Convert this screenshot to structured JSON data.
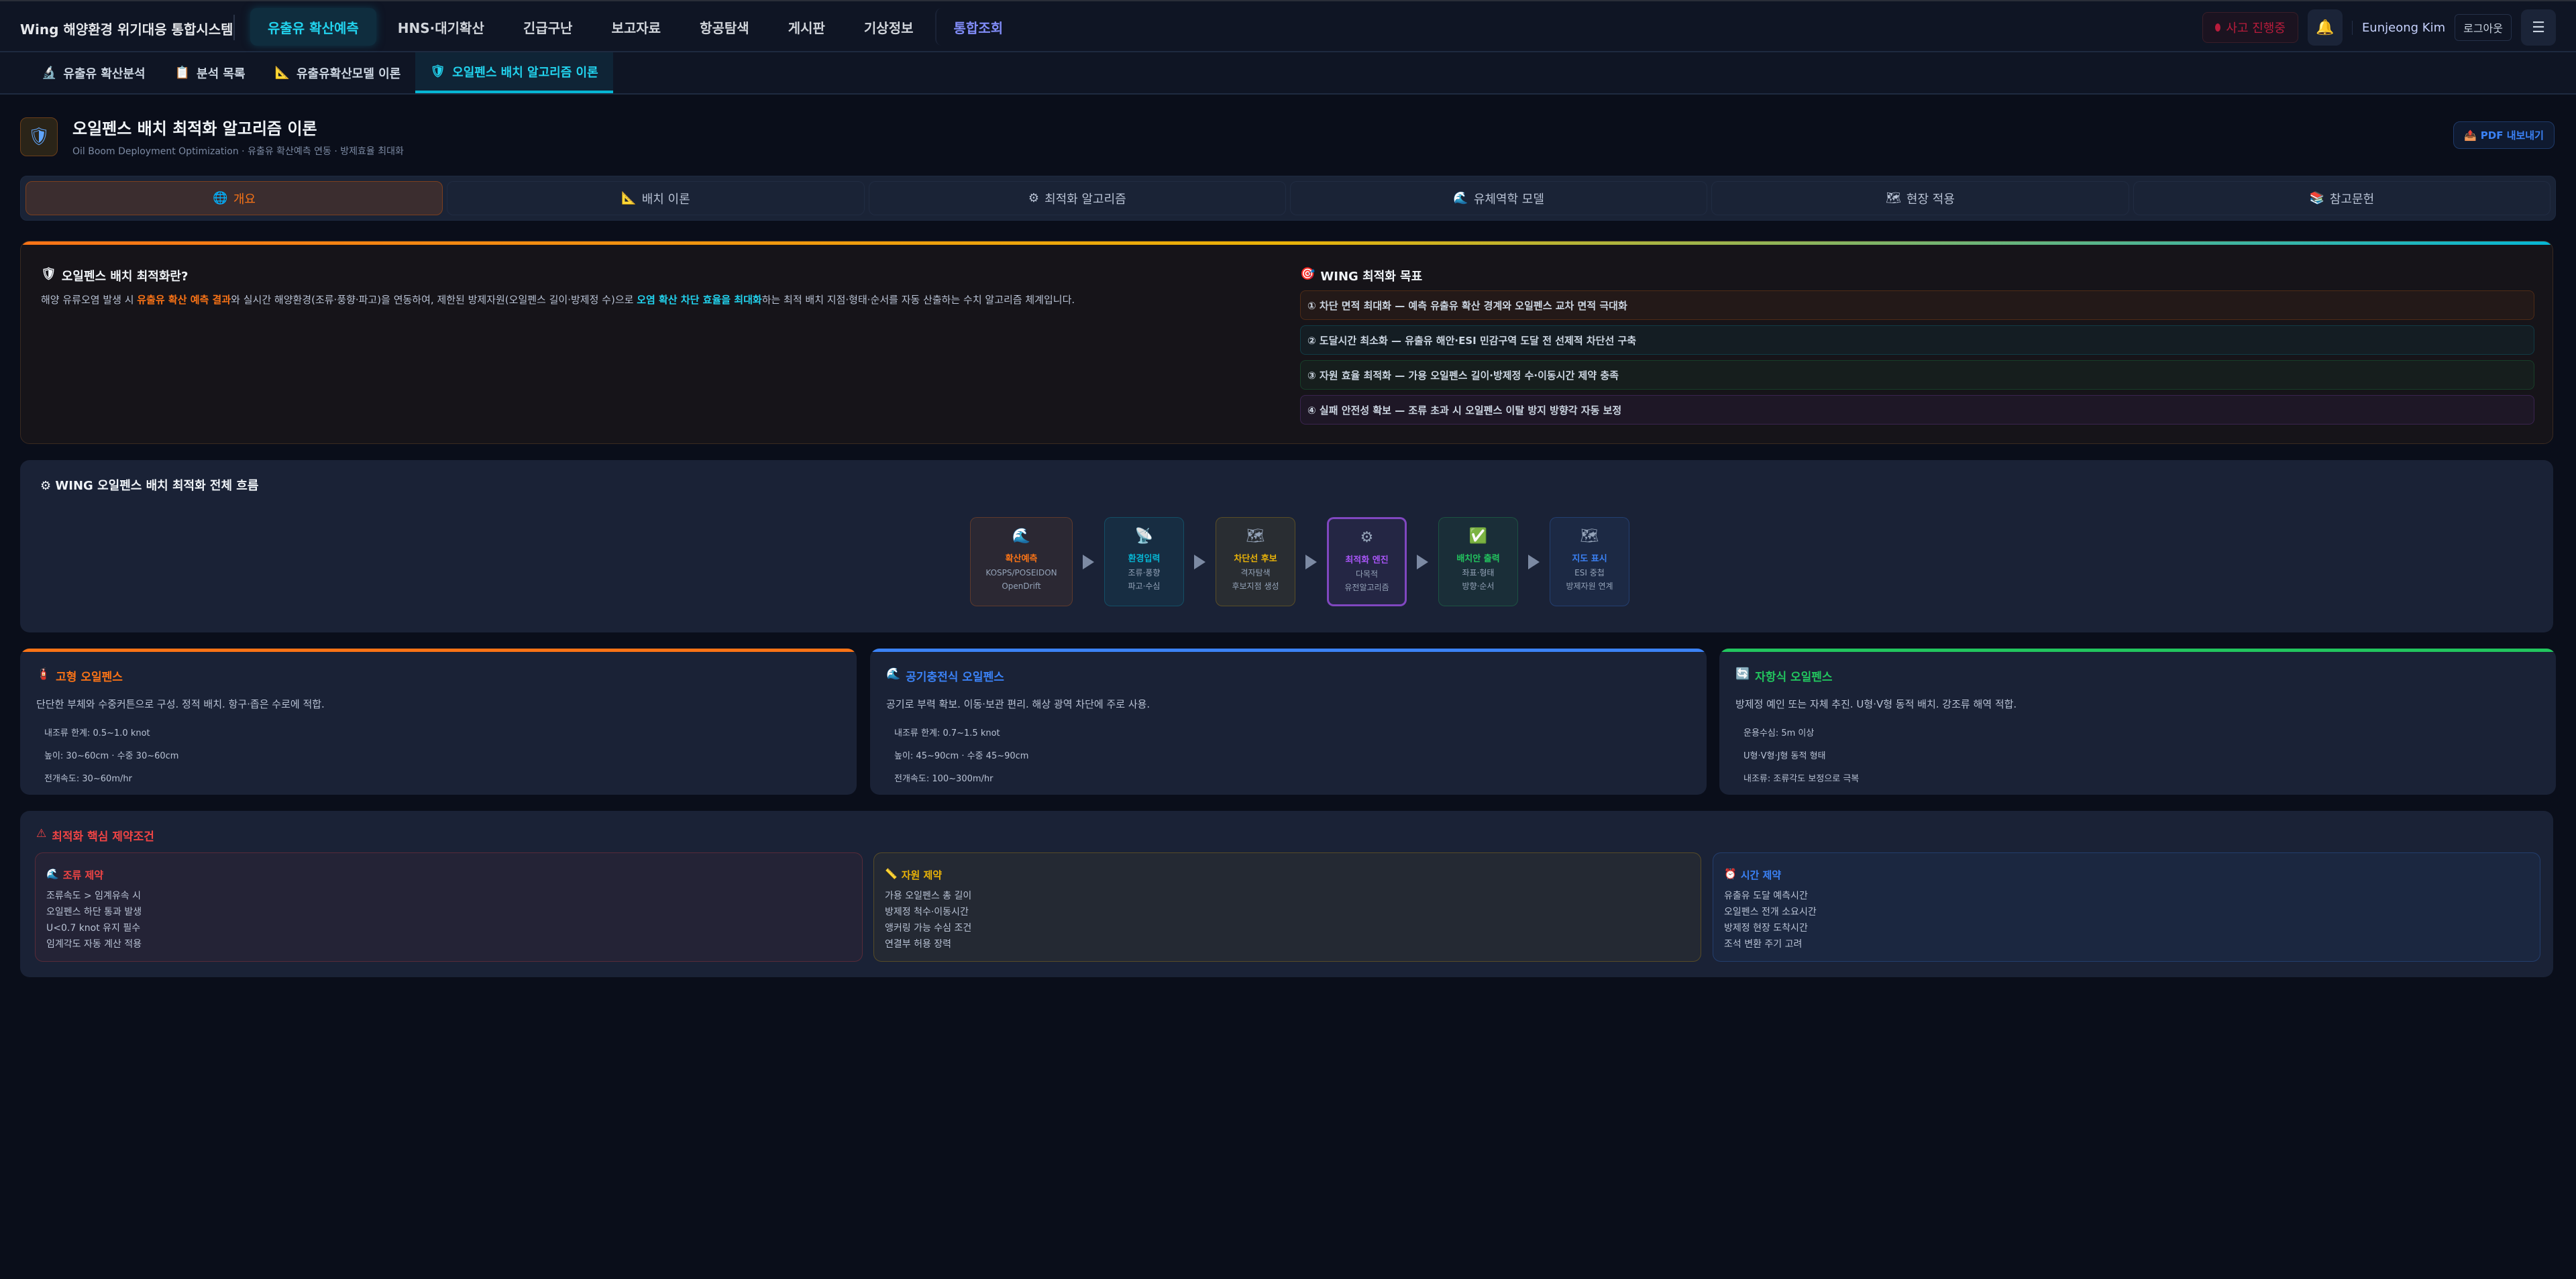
{
  "header": {
    "logo": "Wing 해양환경 위기대응 통합시스템",
    "nav": [
      {
        "label": "유출유 확산예측",
        "active": true
      },
      {
        "label": "HNS·대기확산"
      },
      {
        "label": "긴급구난"
      },
      {
        "label": "보고자료"
      },
      {
        "label": "항공탐색"
      },
      {
        "label": "게시판"
      },
      {
        "label": "기상정보"
      },
      {
        "label": "통합조회",
        "special": true
      }
    ],
    "incident": "사고 진행중",
    "user": "Eunjeong Kim",
    "logout": "로그아웃",
    "bell_icon": "bell-icon",
    "menu_icon": "hamburger-icon"
  },
  "subnav": [
    {
      "icon": "🔬",
      "label": "유출유 확산분석"
    },
    {
      "icon": "📋",
      "label": "분석 목록"
    },
    {
      "icon": "📐",
      "label": "유출유확산모델 이론"
    },
    {
      "icon": "🛡",
      "label": "오일펜스 배치 알고리즘 이론",
      "active": true
    }
  ],
  "page": {
    "title": "오일펜스 배치 최적화 알고리즘 이론",
    "subtitle": "Oil Boom Deployment Optimization · 유출유 확산예측 연동 · 방제효율 최대화",
    "pdf": "PDF 내보내기"
  },
  "tabs": [
    {
      "icon": "🌐",
      "label": "개요",
      "active": true
    },
    {
      "icon": "📐",
      "label": "배치 이론"
    },
    {
      "icon": "⚙",
      "label": "최적화 알고리즘"
    },
    {
      "icon": "🌊",
      "label": "유체역학 모델"
    },
    {
      "icon": "🗺",
      "label": "현장 적용"
    },
    {
      "icon": "📚",
      "label": "참고문헌"
    }
  ],
  "overview": {
    "heading": "오일펜스 배치 최적화란?",
    "para": [
      "해양 유류오염 발생 시 ",
      "유출유 확산 예측 결과",
      "와 실시간 해양환경(조류·풍향·파고)을 연동하여, 제한된 방제자원(오일펜스 길이·방제정 수)으로 ",
      "오염 확산 차단 효율을 최대화",
      "하는 최적 배치 지점·형태·순서를 자동 산출하는 수치 알고리즘 체계입니다."
    ],
    "goals_heading": "WING 최적화 목표",
    "goals": [
      {
        "text": "① 차단 면적 최대화 — 예측 유출유 확산 경계와 오일펜스 교차 면적 극대화",
        "color": "#f97316"
      },
      {
        "text": "② 도달시간 최소화 — 유출유 해안·ESI 민감구역 도달 전 선제적 차단선 구축",
        "color": "#06b6d4"
      },
      {
        "text": "③ 자원 효율 최적화 — 가용 오일펜스 길이·방제정 수·이동시간 제약 충족",
        "color": "#22c55e"
      },
      {
        "text": "④ 실패 안전성 확보 — 조류 초과 시 오일펜스 이탈 방지 방향각 자동 보정",
        "color": "#a855f7"
      }
    ]
  },
  "flow": {
    "heading": "WING 오일펜스 배치 최적화 전체 흐름",
    "steps": [
      {
        "icon": "🌊",
        "title": "확산예측",
        "lines": [
          "KOSPS/POSEIDON",
          "OpenDrift"
        ],
        "color": "#f97316"
      },
      {
        "icon": "📡",
        "title": "환경입력",
        "lines": [
          "조류·풍향",
          "파고·수심"
        ],
        "color": "#06b6d4"
      },
      {
        "icon": "🗺",
        "title": "차단선 후보",
        "lines": [
          "격자탐색",
          "후보지점 생성"
        ],
        "color": "#eab308"
      },
      {
        "icon": "⚙",
        "title": "최적화 엔진",
        "lines": [
          "다목적",
          "유전알고리즘"
        ],
        "color": "#a855f7"
      },
      {
        "icon": "✅",
        "title": "배치안 출력",
        "lines": [
          "좌표·형태",
          "방향·순서"
        ],
        "color": "#22c55e"
      },
      {
        "icon": "🗺",
        "title": "지도 표시",
        "lines": [
          "ESI 중첩",
          "방제자원 연계"
        ],
        "color": "#3b82f6"
      }
    ]
  },
  "booms": [
    {
      "icon": "🧯",
      "title": "고형 오일펜스",
      "color": "#f97316",
      "desc": "단단한 부체와 수중커튼으로 구성. 정적 배치. 항구·좁은 수로에 적합.",
      "specs": [
        "내조류 한계: 0.5~1.0 knot",
        "높이: 30~60cm · 수중 30~60cm",
        "전개속도: 30~60m/hr"
      ]
    },
    {
      "icon": "🌊",
      "title": "공기충전식 오일펜스",
      "color": "#3b82f6",
      "desc": "공기로 부력 확보. 이동·보관 편리. 해상 광역 차단에 주로 사용.",
      "specs": [
        "내조류 한계: 0.7~1.5 knot",
        "높이: 45~90cm · 수중 45~90cm",
        "전개속도: 100~300m/hr"
      ]
    },
    {
      "icon": "🔄",
      "title": "자항식 오일펜스",
      "color": "#22c55e",
      "desc": "방제정 예인 또는 자체 추진. U형·V형 동적 배치. 강조류 해역 적합.",
      "specs": [
        "운용수심: 5m 이상",
        "U형·V형·J형 동적 형태",
        "내조류: 조류각도 보정으로 극복"
      ]
    }
  ],
  "constraints": {
    "heading": "최적화 핵심 제약조건",
    "icon": "⚠",
    "items": [
      {
        "icon": "🌊",
        "title": "조류 제약",
        "color": "#ef4444",
        "lines": [
          "조류속도 > 임계유속 시",
          "오일펜스 하단 통과 발생",
          "U<0.7 knot 유지 필수",
          "임계각도 자동 계산 적용"
        ]
      },
      {
        "icon": "📏",
        "title": "자원 제약",
        "color": "#eab308",
        "lines": [
          "가용 오일펜스 총 길이",
          "방제정 척수·이동시간",
          "앵커링 가능 수심 조건",
          "연결부 허용 장력"
        ]
      },
      {
        "icon": "⏰",
        "title": "시간 제약",
        "color": "#3b82f6",
        "lines": [
          "유출유 도달 예측시간",
          "오일펜스 전개 소요시간",
          "방제정 현장 도착시간",
          "조석 변환 주기 고려"
        ]
      }
    ]
  }
}
